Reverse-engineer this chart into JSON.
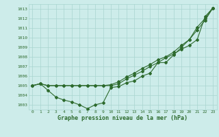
{
  "x": [
    0,
    1,
    2,
    3,
    4,
    5,
    6,
    7,
    8,
    9,
    10,
    11,
    12,
    13,
    14,
    15,
    16,
    17,
    18,
    19,
    20,
    21,
    22,
    23
  ],
  "line1": [
    1005.0,
    1005.2,
    1004.5,
    1003.8,
    1003.5,
    1003.3,
    1003.0,
    1002.6,
    1003.0,
    1003.2,
    1004.8,
    1004.9,
    1005.3,
    1005.5,
    1006.0,
    1006.3,
    1007.4,
    1007.4,
    1008.2,
    1009.0,
    1009.8,
    1011.1,
    1012.0,
    1013.1
  ],
  "line2": [
    1005.0,
    1005.2,
    1005.0,
    1005.0,
    1005.0,
    1005.0,
    1005.0,
    1005.0,
    1005.0,
    1005.0,
    1005.1,
    1005.4,
    1005.9,
    1006.3,
    1006.8,
    1007.2,
    1007.7,
    1008.0,
    1008.5,
    1009.2,
    1009.8,
    1010.8,
    1011.8,
    1013.1
  ],
  "line3": [
    1005.0,
    1005.2,
    1005.0,
    1005.0,
    1005.0,
    1005.0,
    1005.0,
    1005.0,
    1005.0,
    1005.0,
    1005.0,
    1005.2,
    1005.7,
    1006.1,
    1006.5,
    1007.0,
    1007.4,
    1007.9,
    1008.3,
    1008.8,
    1009.2,
    1009.8,
    1012.2,
    1013.1
  ],
  "line_color": "#2d6a2d",
  "bg_color": "#cdecea",
  "grid_color": "#a8d5cf",
  "ylim_min": 1002.5,
  "ylim_max": 1013.5,
  "xlim_min": -0.5,
  "xlim_max": 23.5,
  "yticks": [
    1003,
    1004,
    1005,
    1006,
    1007,
    1008,
    1009,
    1010,
    1011,
    1012,
    1013
  ],
  "xticks": [
    0,
    1,
    2,
    3,
    4,
    5,
    6,
    7,
    8,
    9,
    10,
    11,
    12,
    13,
    14,
    15,
    16,
    17,
    18,
    19,
    20,
    21,
    22,
    23
  ],
  "xlabel": "Graphe pression niveau de la mer (hPa)"
}
